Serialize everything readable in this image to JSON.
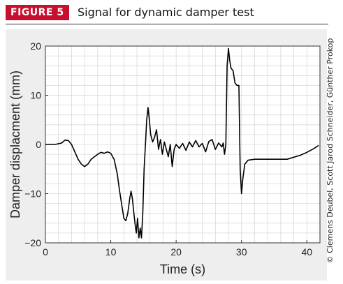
{
  "figure": {
    "badge": "FIGURE 5",
    "title": "Signal for dynamic damper test",
    "credit": "© Clemens Deubel, Scott Jarod Schneider, Günther Prokop",
    "colors": {
      "badge_bg": "#c8102e",
      "panel_bg": "#eeeeee",
      "line": "#000000",
      "grid": "#d9d9d9"
    }
  },
  "chart_data": {
    "type": "line",
    "title": "",
    "xlabel": "Time (s)",
    "ylabel": "Damper displacment (mm)",
    "xlim": [
      0,
      42
    ],
    "ylim": [
      -20,
      20
    ],
    "xticks": [
      0,
      10,
      20,
      30,
      40
    ],
    "yticks": [
      -20,
      -10,
      0,
      10,
      20
    ],
    "grid": true,
    "series": [
      {
        "x": [
          0,
          1.5,
          2.5,
          3,
          3.5,
          4,
          4.5,
          5,
          5.5,
          6,
          6.5,
          7,
          7.5,
          8,
          8.5,
          9,
          9.5,
          10,
          10.5,
          11,
          11.3,
          11.7,
          12,
          12.3,
          12.6,
          12.9,
          13.1,
          13.3,
          13.5,
          13.7,
          13.9,
          14.1,
          14.3,
          14.5,
          14.7,
          14.9,
          15.1,
          15.3,
          15.5,
          15.7,
          15.9,
          16.1,
          16.4,
          16.7,
          17,
          17.3,
          17.6,
          17.9,
          18.2,
          18.5,
          18.8,
          19.1,
          19.4,
          19.7,
          20,
          20.5,
          21,
          21.5,
          22,
          22.5,
          23,
          23.5,
          24,
          24.5,
          25,
          25.5,
          26,
          26.5,
          27,
          27.2,
          27.4,
          27.6,
          27.8,
          28,
          28.2,
          28.4,
          28.7,
          29,
          29.3,
          29.6,
          29.8,
          30,
          30.2,
          30.5,
          31,
          32,
          33,
          34,
          35,
          36,
          36.5,
          37,
          38,
          39,
          40,
          41,
          41.8
        ],
        "y": [
          0,
          0,
          0.3,
          0.9,
          0.8,
          0,
          -1.5,
          -3,
          -4,
          -4.5,
          -4,
          -3,
          -2.5,
          -2,
          -1.6,
          -1.8,
          -1.5,
          -1.8,
          -3,
          -6,
          -9,
          -12.5,
          -15,
          -15.5,
          -14,
          -11,
          -9.5,
          -11,
          -13.5,
          -16,
          -18,
          -15,
          -19,
          -17,
          -19,
          -14,
          -5,
          0,
          5,
          7.5,
          5,
          2,
          0.5,
          1.5,
          3,
          -1,
          1,
          -2,
          0.5,
          -1,
          -2.5,
          0,
          -4.5,
          -1,
          0,
          -0.8,
          0.2,
          -1.2,
          0.5,
          -0.5,
          0.8,
          -0.5,
          0.2,
          -1.5,
          0.6,
          1,
          -1,
          0.3,
          -0.5,
          0.3,
          -2,
          0,
          16,
          19.5,
          17,
          15.5,
          15,
          12.5,
          12,
          12,
          -5,
          -10,
          -7,
          -4,
          -3.2,
          -3,
          -3,
          -3,
          -3,
          -3,
          -3,
          -3,
          -2.6,
          -2.2,
          -1.6,
          -0.9,
          -0.2
        ]
      }
    ]
  }
}
